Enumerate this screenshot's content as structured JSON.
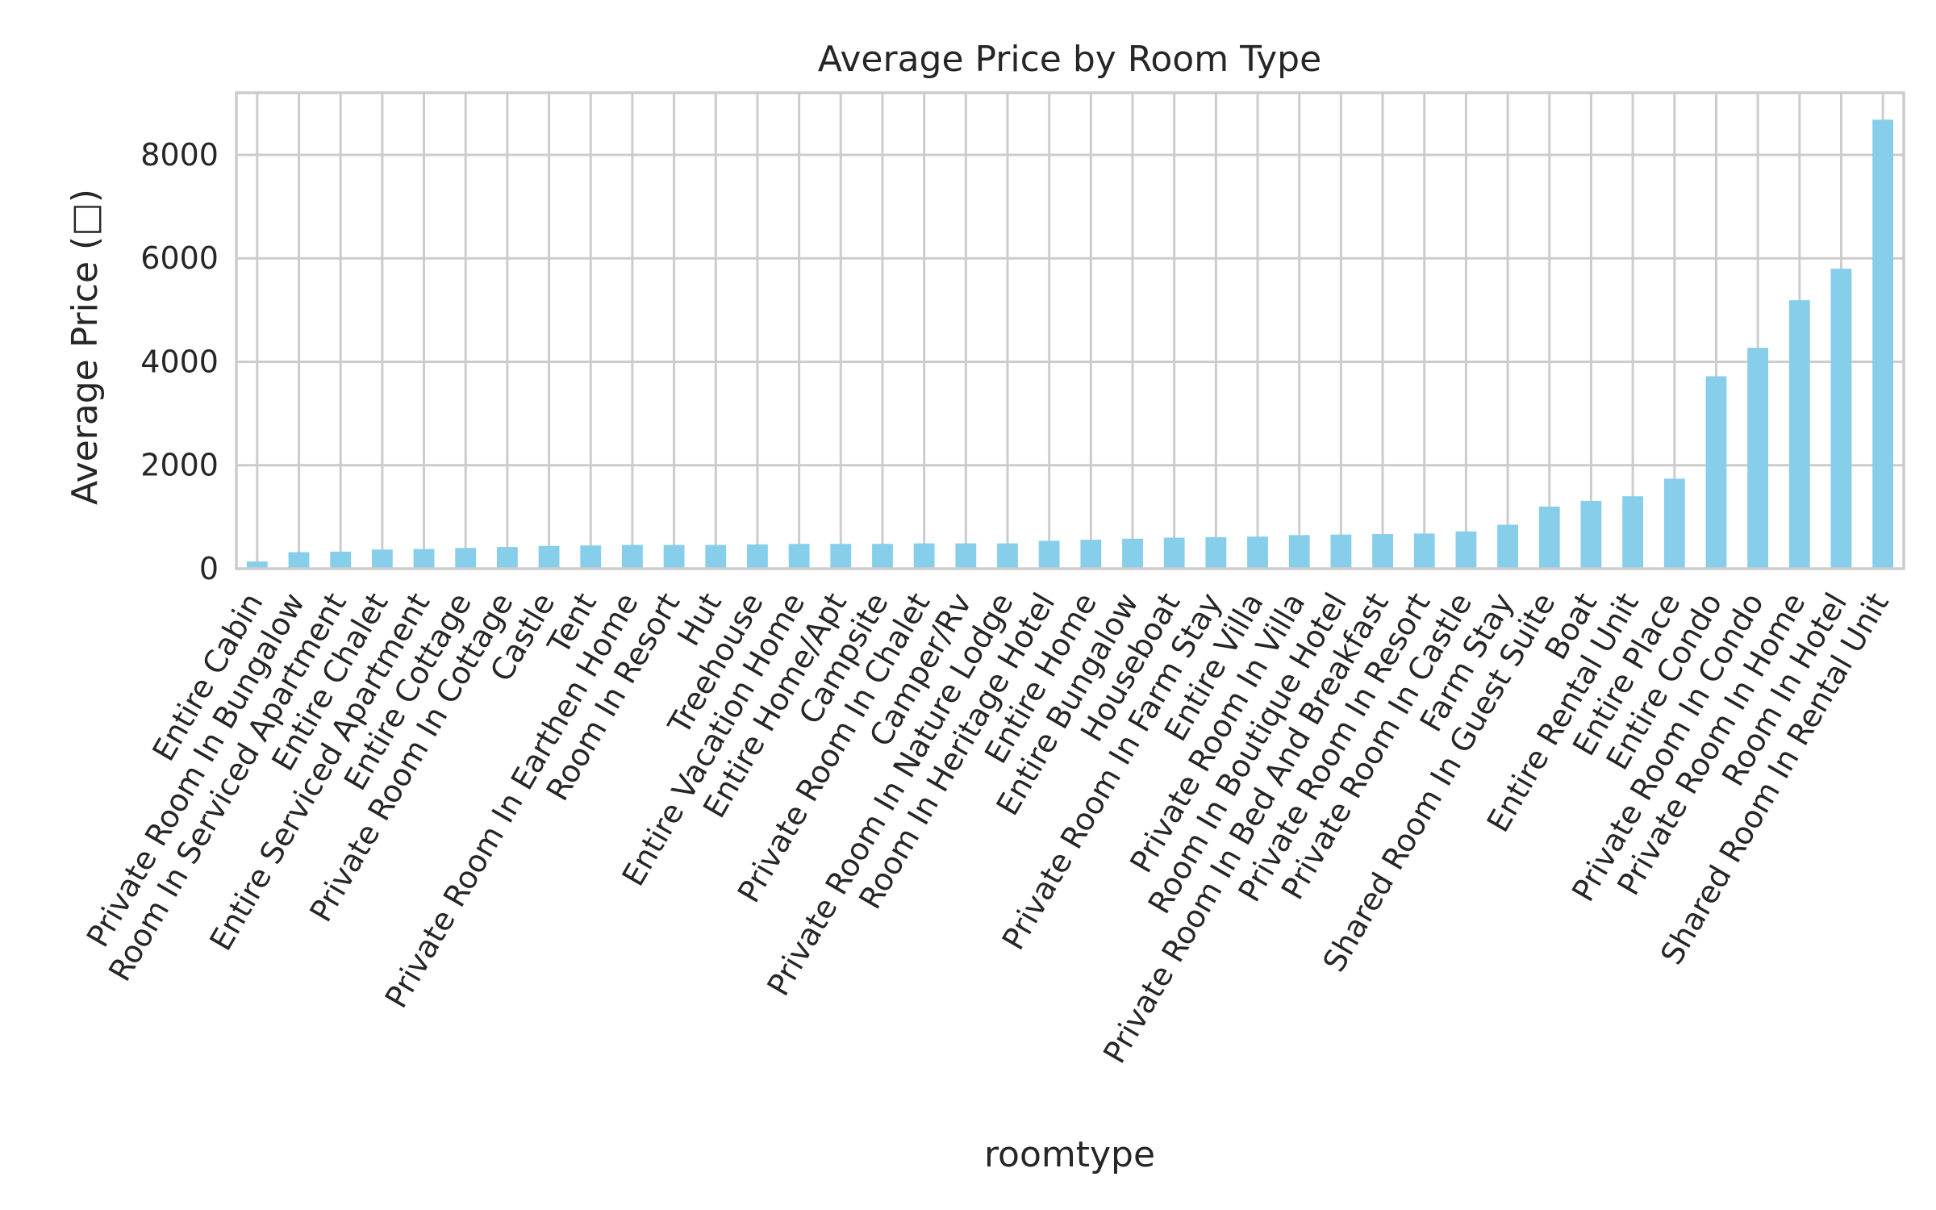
{
  "chart_data": {
    "type": "bar",
    "title": "Average Price by Room Type",
    "xlabel": "roomtype",
    "ylabel": "Average Price (□)",
    "ylim": [
      0,
      9200
    ],
    "yticks": [
      0,
      2000,
      4000,
      6000,
      8000
    ],
    "grid": true,
    "bar_color": "#87ceeb",
    "categories": [
      "Entire Cabin",
      "Private Room In Bungalow",
      "Room In Serviced Apartment",
      "Entire Chalet",
      "Entire Serviced Apartment",
      "Entire Cottage",
      "Private Room In Cottage",
      "Castle",
      "Tent",
      "Private Room In Earthen Home",
      "Room In Resort",
      "Hut",
      "Treehouse",
      "Entire Vacation Home",
      "Entire Home/Apt",
      "Campsite",
      "Private Room In Chalet",
      "Camper/Rv",
      "Private Room In Nature Lodge",
      "Room In Heritage Hotel",
      "Entire Home",
      "Entire Bungalow",
      "Houseboat",
      "Private Room In Farm Stay",
      "Entire Villa",
      "Private Room In Villa",
      "Room In Boutique Hotel",
      "Private Room In Bed And Breakfast",
      "Private Room In Resort",
      "Private Room In Castle",
      "Farm Stay",
      "Shared Room In Guest Suite",
      "Boat",
      "Entire Rental Unit",
      "Entire Place",
      "Entire Condo",
      "Private Room In Condo",
      "Private Room In Home",
      "Room In Hotel",
      "Shared Room In Rental Unit"
    ],
    "values": [
      140,
      320,
      330,
      370,
      380,
      400,
      420,
      440,
      450,
      460,
      460,
      460,
      470,
      480,
      480,
      480,
      490,
      490,
      490,
      540,
      560,
      580,
      600,
      610,
      620,
      650,
      660,
      670,
      680,
      720,
      850,
      1200,
      1310,
      1400,
      1740,
      3720,
      4270,
      5190,
      5800,
      8680
    ]
  }
}
